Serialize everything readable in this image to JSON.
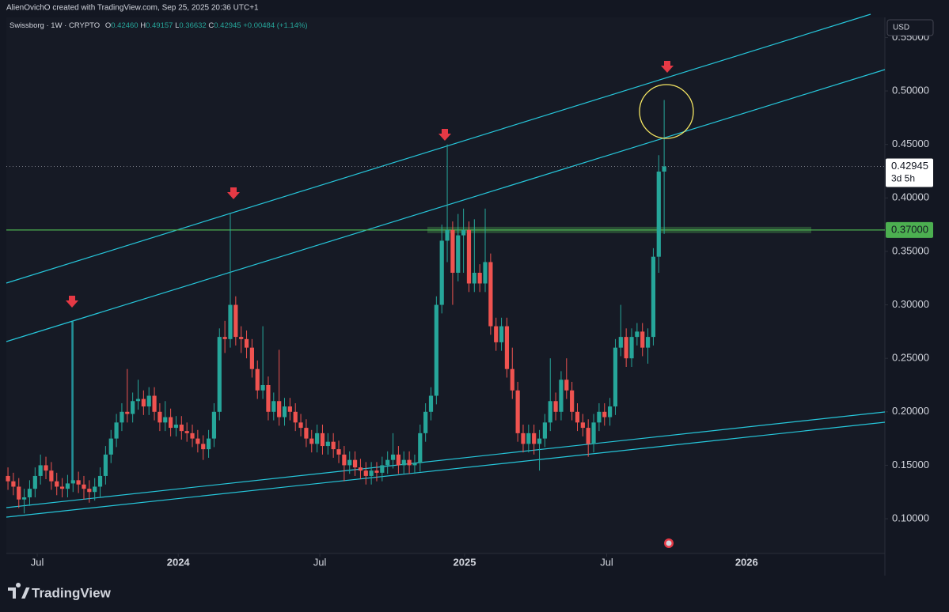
{
  "chart_data": {
    "type": "candlestick",
    "header": "AlienOvichO created with TradingView.com, Sep 25, 2025 20:36 UTC+1",
    "legend": {
      "symbol": "Swissborg · 1W · CRYPTO",
      "o_label": "O",
      "open": "0.42460",
      "h_label": "H",
      "high": "0.49157",
      "l_label": "L",
      "low": "0.36632",
      "c_label": "C",
      "close": "0.42945",
      "change": "+0.00484 (+1.14%)"
    },
    "currency": "USD",
    "brand": "TradingView",
    "up_color": "#26a69a",
    "down_color": "#ef5350",
    "xlim": [
      -0.3,
      161.7
    ],
    "xticks": [
      {
        "value": 5.4,
        "label": "Jul"
      },
      {
        "value": 31.4,
        "label": "2024"
      },
      {
        "value": 57.5,
        "label": "Jul"
      },
      {
        "value": 84.2,
        "label": "2025"
      },
      {
        "value": 110.4,
        "label": "Jul"
      },
      {
        "value": 136.2,
        "label": "2026"
      }
    ],
    "ylim": [
      0.0675,
      0.5688
    ],
    "yticks": [
      {
        "value": 0.1,
        "label": "0.10000"
      },
      {
        "value": 0.15,
        "label": "0.15000"
      },
      {
        "value": 0.2,
        "label": "0.20000"
      },
      {
        "value": 0.25,
        "label": "0.25000"
      },
      {
        "value": 0.3,
        "label": "0.30000"
      },
      {
        "value": 0.35,
        "label": "0.35000"
      },
      {
        "value": 0.4,
        "label": "0.40000"
      },
      {
        "value": 0.45,
        "label": "0.45000"
      },
      {
        "value": 0.5,
        "label": "0.50000"
      },
      {
        "value": 0.55,
        "label": "0.55000"
      }
    ],
    "last_price": {
      "value": 0.42945,
      "label": "0.42945",
      "countdown": "3d 5h"
    },
    "hline": {
      "value": 0.37,
      "label": "0.37000",
      "color": "#4caf50"
    },
    "series": [
      {
        "open": [
          0.14,
          0.135,
          0.13,
          0.118,
          0.12,
          0.128,
          0.14,
          0.15,
          0.145,
          0.135,
          0.13,
          0.128,
          0.133,
          0.136,
          0.132,
          0.128,
          0.125,
          0.13,
          0.14,
          0.16,
          0.175,
          0.19,
          0.2,
          0.198,
          0.21,
          0.212,
          0.205,
          0.215,
          0.2,
          0.19,
          0.195,
          0.185,
          0.188,
          0.182,
          0.18,
          0.175,
          0.17,
          0.165,
          0.175,
          0.2,
          0.27,
          0.268,
          0.3,
          0.27,
          0.268,
          0.26,
          0.24,
          0.22,
          0.225,
          0.2,
          0.21,
          0.195,
          0.205,
          0.2,
          0.19,
          0.185,
          0.175,
          0.17,
          0.18,
          0.168,
          0.172,
          0.165,
          0.16,
          0.15,
          0.155,
          0.148,
          0.145,
          0.14,
          0.145,
          0.143,
          0.15,
          0.155,
          0.16,
          0.15,
          0.155,
          0.15,
          0.152,
          0.18,
          0.2,
          0.215,
          0.3,
          0.36,
          0.37,
          0.33,
          0.365,
          0.37,
          0.32,
          0.33,
          0.32,
          0.34,
          0.28,
          0.265,
          0.28,
          0.24,
          0.22,
          0.18,
          0.17,
          0.18,
          0.17,
          0.175,
          0.19,
          0.21,
          0.2,
          0.23,
          0.22,
          0.2,
          0.19,
          0.185,
          0.17,
          0.19,
          0.2,
          0.195,
          0.205,
          0.26,
          0.27,
          0.25,
          0.27,
          0.275,
          0.26,
          0.27,
          0.345,
          0.4246
        ],
        "high": [
          0.148,
          0.143,
          0.138,
          0.128,
          0.136,
          0.148,
          0.16,
          0.158,
          0.153,
          0.143,
          0.138,
          0.141,
          0.285,
          0.144,
          0.14,
          0.136,
          0.138,
          0.148,
          0.168,
          0.183,
          0.198,
          0.208,
          0.24,
          0.218,
          0.23,
          0.22,
          0.223,
          0.223,
          0.208,
          0.21,
          0.203,
          0.196,
          0.196,
          0.19,
          0.188,
          0.183,
          0.178,
          0.183,
          0.208,
          0.278,
          0.285,
          0.385,
          0.308,
          0.28,
          0.276,
          0.268,
          0.248,
          0.28,
          0.233,
          0.218,
          0.258,
          0.213,
          0.213,
          0.208,
          0.198,
          0.193,
          0.183,
          0.188,
          0.188,
          0.18,
          0.18,
          0.173,
          0.168,
          0.163,
          0.163,
          0.156,
          0.153,
          0.153,
          0.153,
          0.158,
          0.163,
          0.18,
          0.168,
          0.163,
          0.163,
          0.16,
          0.188,
          0.208,
          0.223,
          0.308,
          0.375,
          0.45,
          0.378,
          0.385,
          0.39,
          0.378,
          0.38,
          0.338,
          0.39,
          0.348,
          0.288,
          0.288,
          0.288,
          0.26,
          0.228,
          0.188,
          0.188,
          0.188,
          0.183,
          0.198,
          0.25,
          0.218,
          0.238,
          0.25,
          0.228,
          0.208,
          0.198,
          0.193,
          0.198,
          0.208,
          0.208,
          0.213,
          0.268,
          0.3,
          0.278,
          0.278,
          0.283,
          0.283,
          0.278,
          0.353,
          0.44,
          0.49157
        ],
        "low": [
          0.127,
          0.122,
          0.11,
          0.105,
          0.112,
          0.12,
          0.132,
          0.137,
          0.127,
          0.122,
          0.12,
          0.12,
          0.125,
          0.124,
          0.118,
          0.115,
          0.117,
          0.12,
          0.132,
          0.152,
          0.167,
          0.182,
          0.19,
          0.19,
          0.202,
          0.197,
          0.197,
          0.192,
          0.182,
          0.182,
          0.177,
          0.177,
          0.174,
          0.172,
          0.167,
          0.162,
          0.155,
          0.157,
          0.167,
          0.192,
          0.255,
          0.26,
          0.262,
          0.255,
          0.25,
          0.232,
          0.212,
          0.212,
          0.192,
          0.192,
          0.187,
          0.187,
          0.192,
          0.182,
          0.177,
          0.167,
          0.162,
          0.162,
          0.16,
          0.16,
          0.157,
          0.152,
          0.135,
          0.142,
          0.14,
          0.137,
          0.132,
          0.132,
          0.135,
          0.135,
          0.142,
          0.147,
          0.142,
          0.142,
          0.142,
          0.142,
          0.144,
          0.172,
          0.192,
          0.207,
          0.292,
          0.34,
          0.3,
          0.322,
          0.33,
          0.312,
          0.312,
          0.312,
          0.312,
          0.272,
          0.257,
          0.257,
          0.232,
          0.212,
          0.172,
          0.162,
          0.162,
          0.16,
          0.145,
          0.167,
          0.182,
          0.192,
          0.192,
          0.212,
          0.192,
          0.182,
          0.177,
          0.158,
          0.162,
          0.182,
          0.187,
          0.187,
          0.197,
          0.252,
          0.242,
          0.242,
          0.262,
          0.252,
          0.245,
          0.262,
          0.33,
          0.36632
        ],
        "close": [
          0.135,
          0.13,
          0.118,
          0.12,
          0.128,
          0.14,
          0.15,
          0.145,
          0.135,
          0.13,
          0.128,
          0.133,
          0.136,
          0.132,
          0.128,
          0.125,
          0.13,
          0.14,
          0.16,
          0.175,
          0.19,
          0.2,
          0.198,
          0.21,
          0.212,
          0.205,
          0.215,
          0.2,
          0.19,
          0.195,
          0.185,
          0.188,
          0.182,
          0.18,
          0.175,
          0.17,
          0.165,
          0.175,
          0.2,
          0.27,
          0.268,
          0.3,
          0.27,
          0.268,
          0.26,
          0.24,
          0.22,
          0.225,
          0.2,
          0.21,
          0.195,
          0.205,
          0.2,
          0.19,
          0.185,
          0.175,
          0.17,
          0.18,
          0.168,
          0.172,
          0.165,
          0.16,
          0.15,
          0.155,
          0.148,
          0.145,
          0.14,
          0.145,
          0.143,
          0.15,
          0.155,
          0.16,
          0.15,
          0.155,
          0.15,
          0.152,
          0.18,
          0.2,
          0.215,
          0.3,
          0.36,
          0.37,
          0.33,
          0.365,
          0.37,
          0.32,
          0.33,
          0.32,
          0.34,
          0.28,
          0.265,
          0.28,
          0.24,
          0.22,
          0.18,
          0.17,
          0.18,
          0.17,
          0.175,
          0.19,
          0.21,
          0.2,
          0.23,
          0.22,
          0.2,
          0.19,
          0.185,
          0.17,
          0.19,
          0.2,
          0.195,
          0.205,
          0.26,
          0.27,
          0.25,
          0.27,
          0.275,
          0.26,
          0.27,
          0.345,
          0.4246,
          0.42945
        ]
      }
    ]
  }
}
